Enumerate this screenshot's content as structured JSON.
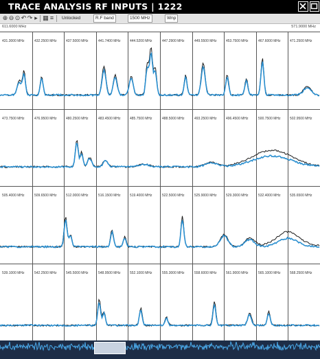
{
  "window": {
    "title": "TRACE ANALYSIS RF INPUTS | 1222",
    "close_icon": "close-icon",
    "maximize_icon": "maximize-icon"
  },
  "toolbar": {
    "icons": [
      "zoom-in-icon",
      "zoom-out-icon",
      "zoom-fit-icon",
      "undo-icon",
      "redo-icon",
      "play-icon",
      "grid-icon",
      "list-icon"
    ],
    "unlocked_label": "Unlocked",
    "rf_band_label": "R.F band",
    "span_value": "1500 MHz",
    "mode_value": "Wnp"
  },
  "range": {
    "start": "611.6000 MHz",
    "end": "571.9000 MHz"
  },
  "cells": [
    [
      "431.3000 MHz",
      "432.2500 MHz",
      "437.5000 MHz",
      "441.7400 MHz",
      "444.5200 MHz",
      "447.2900 MHz",
      "449.5500 MHz",
      "453.7500 MHz",
      "467.6000 MHz",
      "471.2500 MHz"
    ],
    [
      "473.7500 MHz",
      "476.9500 MHz",
      "480.2500 MHz",
      "483.4500 MHz",
      "485.7500 MHz",
      "488.5000 MHz",
      "493.2500 MHz",
      "496.4500 MHz",
      "500.7500 MHz",
      "502.9500 MHz"
    ],
    [
      "505.4000 MHz",
      "509.6500 MHz",
      "512.0000 MHz",
      "516.1500 MHz",
      "519.4000 MHz",
      "522.5000 MHz",
      "525.9000 MHz",
      "529.3000 MHz",
      "532.4000 MHz",
      "535.6500 MHz"
    ],
    [
      "539.1000 MHz",
      "542.2500 MHz",
      "545.5000 MHz",
      "548.9500 MHz",
      "552.1000 MHz",
      "555.3000 MHz",
      "558.6000 MHz",
      "561.9000 MHz",
      "565.1000 MHz",
      "568.2500 MHz"
    ]
  ],
  "colors": {
    "trace_primary": "#2a8fd0",
    "trace_secondary": "#1a1a1a",
    "grid_line": "#555555",
    "background": "#ffffff",
    "titlebar": "#000000",
    "scroll_bg": "#1d2d47"
  }
}
